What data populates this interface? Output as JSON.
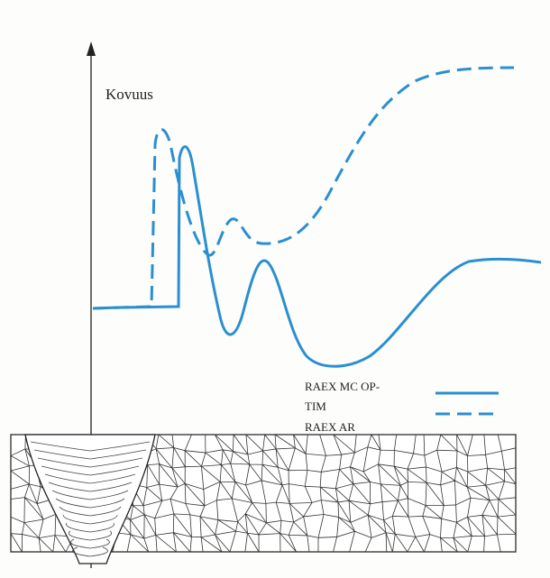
{
  "axis_label": "Kovuus",
  "legend": [
    {
      "lines": [
        "RAEX MC OP-",
        "TIM"
      ]
    },
    {
      "lines": [
        "RAEX AR"
      ]
    }
  ]
}
